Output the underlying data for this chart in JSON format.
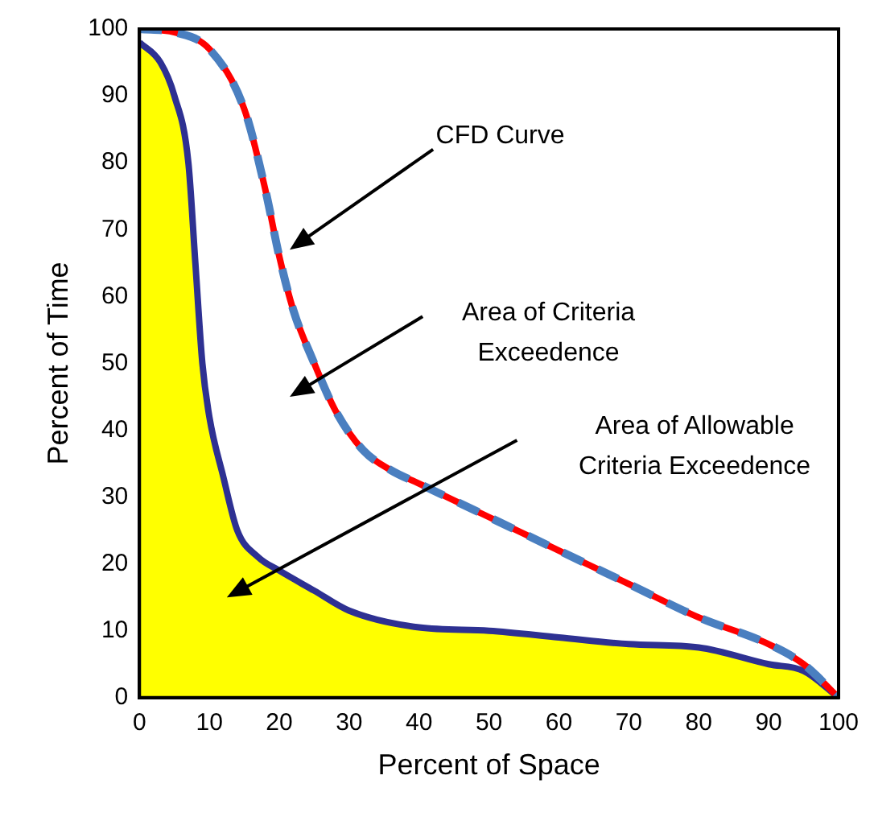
{
  "chart_data": {
    "type": "line",
    "xlabel": "Percent of Space",
    "ylabel": "Percent of Time",
    "xlim": [
      0,
      100
    ],
    "ylim": [
      0,
      100
    ],
    "xticks": [
      0,
      10,
      20,
      30,
      40,
      50,
      60,
      70,
      80,
      90,
      100
    ],
    "yticks": [
      0,
      10,
      20,
      30,
      40,
      50,
      60,
      70,
      80,
      90,
      100
    ],
    "grid": false,
    "legend": false,
    "marker": "none",
    "series": [
      {
        "type": "area",
        "color": "#ffff00",
        "x": [
          0,
          3,
          5,
          7,
          8,
          9,
          10,
          12,
          14,
          17,
          20,
          25,
          30,
          40,
          50,
          60,
          70,
          80,
          90,
          95,
          100
        ],
        "values": [
          98,
          95,
          90,
          80,
          65,
          50,
          42,
          33,
          25,
          21,
          19,
          16,
          13,
          10.5,
          10,
          9,
          8,
          7.5,
          5,
          4,
          0
        ]
      },
      {
        "type": "line",
        "color": "#ff0000",
        "x": [
          0,
          5,
          10,
          15,
          18,
          20,
          22,
          25,
          28,
          32,
          36,
          40,
          50,
          60,
          70,
          80,
          90,
          95,
          100
        ],
        "values": [
          100,
          99.5,
          97,
          88,
          76,
          66,
          58,
          50,
          43,
          37,
          34,
          32,
          27,
          22,
          17,
          12,
          8,
          5,
          0
        ]
      },
      {
        "type": "line",
        "color": "#4a7fc0",
        "line_style": "dashed",
        "x": [
          0,
          5,
          10,
          15,
          18,
          20,
          22,
          25,
          28,
          32,
          36,
          40,
          50,
          60,
          70,
          80,
          90,
          95,
          100
        ],
        "values": [
          100,
          99.5,
          97,
          88,
          76,
          66,
          58,
          50,
          43,
          37,
          34,
          32,
          27,
          22,
          17,
          12,
          8,
          5,
          0
        ]
      }
    ],
    "annotations": [
      "CFD Curve",
      "Area of Criteria Exceedence",
      "Area of Allowable Criteria Exceedence"
    ]
  }
}
